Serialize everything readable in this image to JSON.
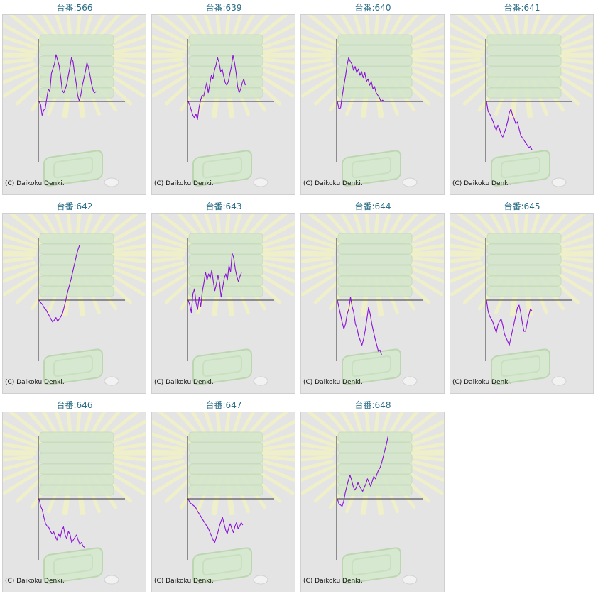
{
  "colors": {
    "title": "#2a6d86",
    "line": "#8a12d6",
    "axis": "#333333",
    "panel": "#e4e4e4"
  },
  "chart_data": [
    {
      "type": "line",
      "title": "台番:566",
      "credit": "(C) Daikoku Denki.",
      "values": [
        0,
        -5,
        -22,
        -14,
        -11,
        5,
        20,
        16,
        45,
        53,
        60,
        75,
        66,
        58,
        40,
        18,
        14,
        20,
        28,
        42,
        55,
        70,
        64,
        45,
        30,
        10,
        1,
        10,
        25,
        36,
        48,
        62,
        55,
        42,
        28,
        18,
        14,
        16
      ]
    },
    {
      "type": "line",
      "title": "台番:639",
      "credit": "(C) Daikoku Denki.",
      "values": [
        0,
        -6,
        -14,
        -22,
        -26,
        -20,
        -29,
        -10,
        2,
        10,
        8,
        20,
        30,
        14,
        28,
        42,
        36,
        50,
        58,
        70,
        62,
        48,
        52,
        40,
        30,
        26,
        32,
        45,
        56,
        74,
        62,
        46,
        24,
        14,
        20,
        30,
        36,
        26
      ]
    },
    {
      "type": "line",
      "title": "台番:640",
      "credit": "(C) Daikoku Denki.",
      "values": [
        0,
        -12,
        -10,
        8,
        25,
        40,
        58,
        70,
        64,
        60,
        50,
        56,
        46,
        52,
        42,
        48,
        38,
        46,
        32,
        36,
        26,
        32,
        20,
        24,
        14,
        10,
        6,
        0,
        2,
        0
      ]
    },
    {
      "type": "line",
      "title": "台番:641",
      "credit": "(C) Daikoku Denki.",
      "values": [
        0,
        -16,
        -20,
        -26,
        -32,
        -40,
        -46,
        -38,
        -44,
        -53,
        -57,
        -50,
        -42,
        -32,
        -18,
        -12,
        -22,
        -28,
        -36,
        -33,
        -44,
        -54,
        -58,
        -62,
        -66,
        -70,
        -74,
        -72,
        -78
      ]
    },
    {
      "type": "line",
      "title": "台番:642",
      "credit": "(C) Daikoku Denki.",
      "values": [
        0,
        -4,
        -7,
        -12,
        -15,
        -20,
        -25,
        -30,
        -35,
        -32,
        -28,
        -34,
        -30,
        -26,
        -20,
        -10,
        2,
        14,
        24,
        34,
        46,
        58,
        70,
        80,
        88
      ]
    },
    {
      "type": "line",
      "title": "台番:643",
      "credit": "(C) Daikoku Denki.",
      "values": [
        0,
        -8,
        -20,
        10,
        18,
        -4,
        -15,
        5,
        -10,
        14,
        28,
        45,
        32,
        42,
        35,
        48,
        30,
        15,
        26,
        40,
        28,
        5,
        20,
        35,
        42,
        32,
        55,
        45,
        75,
        68,
        50,
        38,
        30,
        38,
        44
      ]
    },
    {
      "type": "line",
      "title": "台番:644",
      "credit": "(C) Daikoku Denki.",
      "values": [
        0,
        -12,
        -24,
        -36,
        -46,
        -38,
        -22,
        -14,
        5,
        -10,
        -20,
        -38,
        -45,
        -58,
        -65,
        -72,
        -62,
        -48,
        -30,
        -12,
        -22,
        -38,
        -50,
        -62,
        -72,
        -82,
        -80,
        -88
      ]
    },
    {
      "type": "line",
      "title": "台番:645",
      "credit": "(C) Daikoku Denki.",
      "values": [
        0,
        -18,
        -26,
        -30,
        -36,
        -44,
        -52,
        -40,
        -34,
        -30,
        -40,
        -54,
        -60,
        -66,
        -72,
        -60,
        -48,
        -36,
        -24,
        -12,
        -8,
        -20,
        -36,
        -50,
        -50,
        -36,
        -24,
        -14,
        -18
      ]
    },
    {
      "type": "line",
      "title": "台番:646",
      "credit": "(C) Daikoku Denki.",
      "values": [
        0,
        -12,
        -18,
        -30,
        -40,
        -44,
        -46,
        -52,
        -56,
        -53,
        -60,
        -66,
        -56,
        -62,
        -50,
        -45,
        -58,
        -64,
        -52,
        -57,
        -70,
        -66,
        -62,
        -58,
        -66,
        -73,
        -70,
        -76,
        -78
      ]
    },
    {
      "type": "line",
      "title": "台番:647",
      "credit": "(C) Daikoku Denki.",
      "values": [
        0,
        -6,
        -8,
        -10,
        -12,
        -15,
        -20,
        -24,
        -28,
        -32,
        -36,
        -40,
        -44,
        -48,
        -54,
        -60,
        -66,
        -70,
        -62,
        -54,
        -44,
        -36,
        -30,
        -40,
        -50,
        -56,
        -46,
        -40,
        -48,
        -54,
        -44,
        -38,
        -48,
        -44,
        -38,
        -42
      ]
    },
    {
      "type": "line",
      "title": "台番:648",
      "credit": "(C) Daikoku Denki.",
      "values": [
        0,
        -8,
        -10,
        -12,
        -4,
        10,
        20,
        30,
        38,
        30,
        20,
        14,
        18,
        26,
        20,
        16,
        12,
        18,
        24,
        32,
        26,
        20,
        28,
        36,
        32,
        40,
        46,
        50,
        58,
        68,
        78,
        88,
        100
      ]
    }
  ]
}
